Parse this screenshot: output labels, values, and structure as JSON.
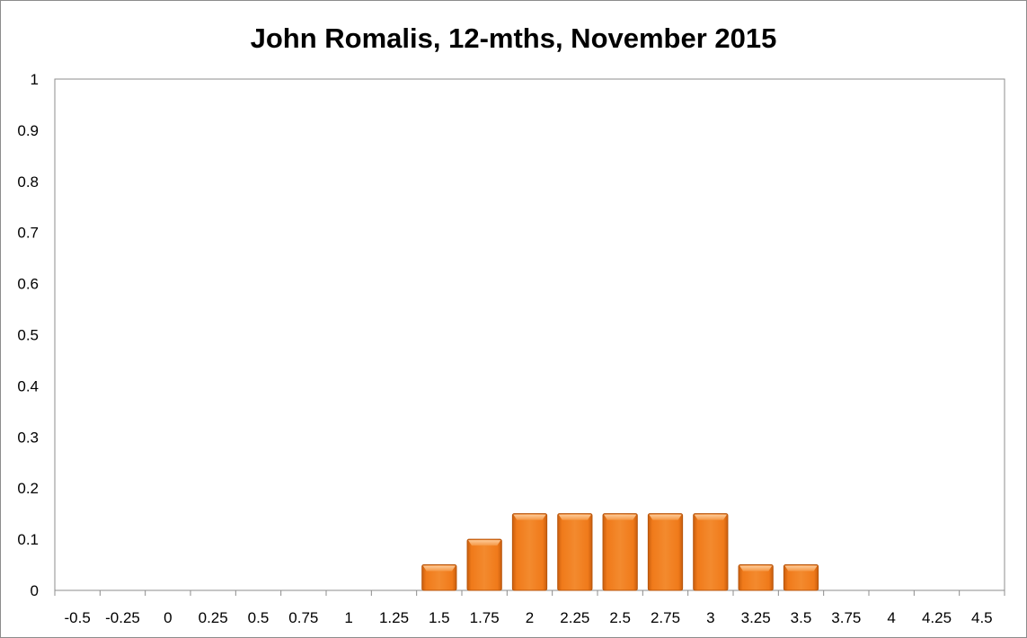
{
  "chart_data": {
    "type": "bar",
    "title": "John Romalis, 12-mths, November 2015",
    "xlabel": "",
    "ylabel": "",
    "categories": [
      "-0.5",
      "-0.25",
      "0",
      "0.25",
      "0.5",
      "0.75",
      "1",
      "1.25",
      "1.5",
      "1.75",
      "2",
      "2.25",
      "2.5",
      "2.75",
      "3",
      "3.25",
      "3.5",
      "3.75",
      "4",
      "4.25",
      "4.5"
    ],
    "values": [
      0,
      0,
      0,
      0,
      0,
      0,
      0,
      0,
      0.05,
      0.1,
      0.15,
      0.15,
      0.15,
      0.15,
      0.15,
      0.05,
      0.05,
      0,
      0,
      0,
      0
    ],
    "ylim": [
      0,
      1
    ],
    "yticks": [
      "0",
      "0.1",
      "0.2",
      "0.3",
      "0.4",
      "0.5",
      "0.6",
      "0.7",
      "0.8",
      "0.9",
      "1"
    ],
    "grid": false,
    "legend": "none",
    "bar_color": "#f07a1a",
    "bar_edge_color": "#b8560c"
  }
}
